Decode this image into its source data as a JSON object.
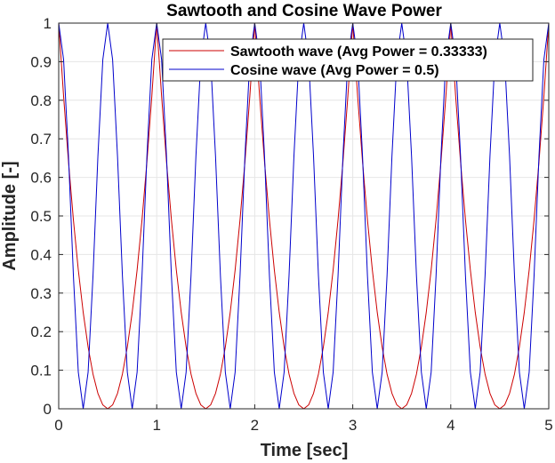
{
  "chart_data": {
    "type": "line",
    "title": "Sawtooth and Cosine Wave Power",
    "xlabel": "Time [sec]",
    "ylabel": "Amplitude [-]",
    "xlim": [
      0,
      5
    ],
    "ylim": [
      0,
      1
    ],
    "xticks": [
      "0",
      "1",
      "2",
      "3",
      "4",
      "5"
    ],
    "yticks": [
      "0",
      "0.1",
      "0.2",
      "0.3",
      "0.4",
      "0.5",
      "0.6",
      "0.7",
      "0.8",
      "0.9",
      "1"
    ],
    "grid": true,
    "legend_position": "top-right",
    "series": [
      {
        "name": "Sawtooth wave (Avg Power = 0.33333)",
        "color": "#cc0000",
        "x": [
          0,
          0.05,
          0.1,
          0.15,
          0.2,
          0.25,
          0.3,
          0.35,
          0.4,
          0.45,
          0.5,
          0.55,
          0.6,
          0.65,
          0.7,
          0.75,
          0.8,
          0.85,
          0.9,
          0.95,
          1.0
        ],
        "y": [
          1,
          0.81,
          0.64,
          0.49,
          0.36,
          0.25,
          0.16,
          0.09,
          0.04,
          0.01,
          0,
          0.01,
          0.04,
          0.09,
          0.16,
          0.25,
          0.36,
          0.49,
          0.64,
          0.81,
          1
        ],
        "period": 1
      },
      {
        "name": "Cosine wave (Avg Power = 0.5)",
        "color": "#0000cc",
        "x": [
          0,
          0.05,
          0.1,
          0.15,
          0.2,
          0.25,
          0.3,
          0.35,
          0.4,
          0.45,
          0.5
        ],
        "y": [
          1,
          0.905,
          0.655,
          0.345,
          0.095,
          0,
          0.095,
          0.345,
          0.655,
          0.905,
          1
        ],
        "period": 0.5
      }
    ]
  }
}
